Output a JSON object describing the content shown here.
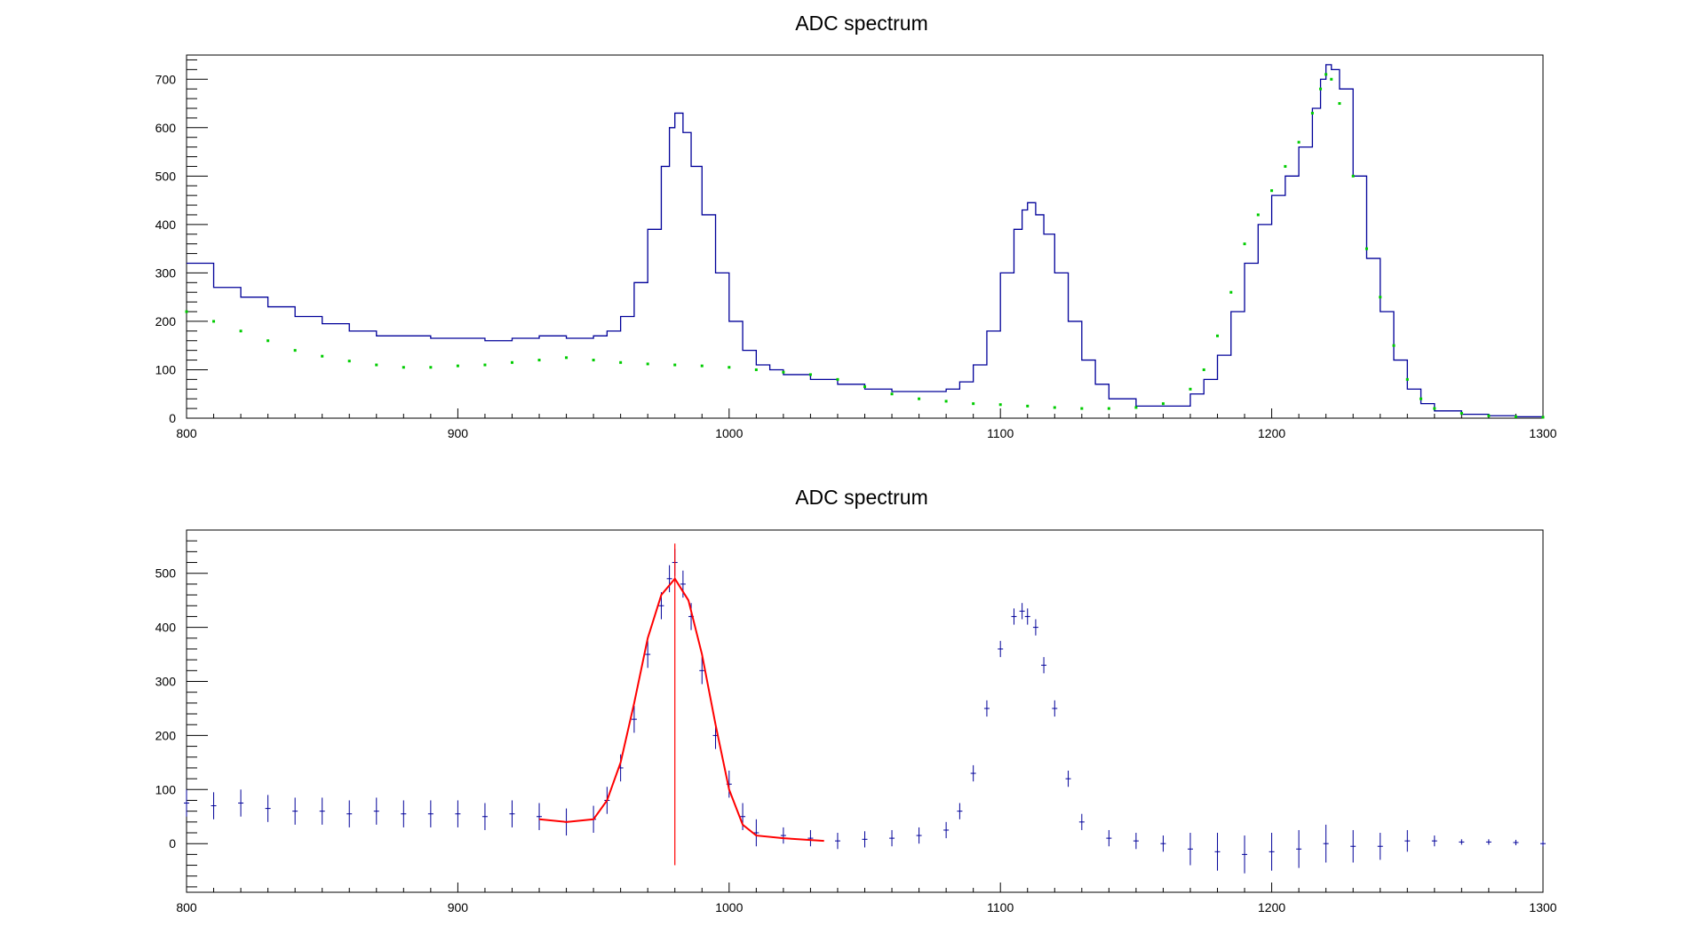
{
  "chart_data": [
    {
      "type": "line",
      "title": "ADC spectrum",
      "xlabel": "",
      "ylabel": "",
      "xlim": [
        800,
        1300
      ],
      "ylim": [
        0,
        750
      ],
      "grid": false,
      "x_ticks": [
        "800",
        "900",
        "1000",
        "1100",
        "1200",
        "1300"
      ],
      "y_ticks": [
        "0",
        "100",
        "200",
        "300",
        "400",
        "500",
        "600",
        "700"
      ],
      "colors": {
        "histogram": "#000099",
        "background": "#00cc00",
        "axes": "#000000"
      },
      "series": [
        {
          "style": "step-histogram",
          "x": [
            800,
            810,
            820,
            830,
            840,
            850,
            860,
            870,
            880,
            890,
            900,
            910,
            920,
            930,
            940,
            950,
            955,
            960,
            965,
            970,
            975,
            978,
            980,
            983,
            986,
            990,
            995,
            1000,
            1005,
            1010,
            1015,
            1020,
            1030,
            1040,
            1050,
            1060,
            1070,
            1080,
            1085,
            1090,
            1095,
            1100,
            1105,
            1108,
            1110,
            1113,
            1116,
            1120,
            1125,
            1130,
            1135,
            1140,
            1150,
            1160,
            1170,
            1175,
            1180,
            1185,
            1190,
            1195,
            1200,
            1205,
            1210,
            1215,
            1218,
            1220,
            1222,
            1225,
            1230,
            1235,
            1240,
            1245,
            1250,
            1255,
            1260,
            1270,
            1280,
            1290,
            1300
          ],
          "y": [
            320,
            270,
            250,
            230,
            210,
            195,
            180,
            170,
            170,
            165,
            165,
            160,
            165,
            170,
            165,
            170,
            180,
            210,
            280,
            390,
            520,
            600,
            630,
            590,
            520,
            420,
            300,
            200,
            140,
            110,
            100,
            90,
            80,
            70,
            60,
            55,
            55,
            60,
            75,
            110,
            180,
            300,
            390,
            430,
            445,
            420,
            380,
            300,
            200,
            120,
            70,
            40,
            25,
            25,
            50,
            80,
            130,
            220,
            320,
            400,
            460,
            500,
            560,
            640,
            700,
            730,
            720,
            680,
            500,
            330,
            220,
            120,
            60,
            30,
            15,
            8,
            5,
            3,
            3
          ]
        },
        {
          "style": "points",
          "x": [
            800,
            810,
            820,
            830,
            840,
            850,
            860,
            870,
            880,
            890,
            900,
            910,
            920,
            930,
            940,
            950,
            960,
            970,
            980,
            990,
            1000,
            1010,
            1020,
            1030,
            1040,
            1050,
            1060,
            1070,
            1080,
            1090,
            1100,
            1110,
            1120,
            1130,
            1140,
            1150,
            1160,
            1170,
            1175,
            1180,
            1185,
            1190,
            1195,
            1200,
            1205,
            1210,
            1215,
            1218,
            1220,
            1222,
            1225,
            1230,
            1235,
            1240,
            1245,
            1250,
            1255,
            1260,
            1270,
            1280,
            1290,
            1300
          ],
          "y": [
            220,
            200,
            180,
            160,
            140,
            128,
            118,
            110,
            105,
            105,
            108,
            110,
            115,
            120,
            125,
            120,
            115,
            112,
            110,
            108,
            105,
            100,
            95,
            90,
            80,
            65,
            50,
            40,
            35,
            30,
            28,
            25,
            22,
            20,
            20,
            22,
            30,
            60,
            100,
            170,
            260,
            360,
            420,
            470,
            520,
            570,
            630,
            680,
            710,
            700,
            650,
            500,
            350,
            250,
            150,
            80,
            40,
            20,
            10,
            5,
            3,
            2
          ]
        }
      ]
    },
    {
      "type": "scatter",
      "title": "ADC spectrum",
      "xlabel": "",
      "ylabel": "",
      "xlim": [
        800,
        1300
      ],
      "ylim": [
        -90,
        580
      ],
      "grid": false,
      "x_ticks": [
        "800",
        "900",
        "1000",
        "1100",
        "1200",
        "1300"
      ],
      "y_ticks": [
        "0",
        "100",
        "200",
        "300",
        "400",
        "500"
      ],
      "colors": {
        "points": "#000099",
        "fit": "#ff0000",
        "marker": "#ff0000",
        "axes": "#000000"
      },
      "series": [
        {
          "style": "points-with-errors",
          "x": [
            800,
            810,
            820,
            830,
            840,
            850,
            860,
            870,
            880,
            890,
            900,
            910,
            920,
            930,
            940,
            950,
            955,
            960,
            965,
            970,
            975,
            978,
            980,
            983,
            986,
            990,
            995,
            1000,
            1005,
            1010,
            1020,
            1030,
            1040,
            1050,
            1060,
            1070,
            1080,
            1085,
            1090,
            1095,
            1100,
            1105,
            1108,
            1110,
            1113,
            1116,
            1120,
            1125,
            1130,
            1140,
            1150,
            1160,
            1170,
            1180,
            1190,
            1200,
            1210,
            1220,
            1230,
            1240,
            1250,
            1260,
            1270,
            1280,
            1290,
            1300
          ],
          "y": [
            75,
            70,
            75,
            65,
            60,
            60,
            55,
            60,
            55,
            55,
            55,
            50,
            55,
            50,
            40,
            45,
            80,
            140,
            230,
            350,
            440,
            490,
            520,
            480,
            420,
            320,
            200,
            110,
            50,
            20,
            15,
            10,
            5,
            8,
            10,
            15,
            25,
            60,
            130,
            250,
            360,
            420,
            430,
            420,
            400,
            330,
            250,
            120,
            40,
            10,
            5,
            0,
            -10,
            -15,
            -20,
            -15,
            -10,
            0,
            -5,
            -5,
            5,
            5,
            3,
            3,
            2,
            0
          ],
          "errors": [
            25,
            25,
            25,
            25,
            25,
            25,
            25,
            25,
            25,
            25,
            25,
            25,
            25,
            25,
            25,
            25,
            25,
            25,
            25,
            25,
            25,
            25,
            25,
            25,
            25,
            25,
            25,
            25,
            25,
            25,
            15,
            15,
            15,
            15,
            15,
            15,
            15,
            15,
            15,
            15,
            15,
            15,
            15,
            15,
            15,
            15,
            15,
            15,
            15,
            15,
            15,
            15,
            30,
            35,
            35,
            35,
            35,
            35,
            30,
            25,
            20,
            10,
            5,
            5,
            5,
            5
          ]
        },
        {
          "style": "fit-line",
          "x": [
            930,
            940,
            950,
            955,
            960,
            965,
            970,
            975,
            980,
            985,
            990,
            995,
            1000,
            1005,
            1010,
            1020,
            1035
          ],
          "y": [
            45,
            40,
            45,
            80,
            150,
            260,
            380,
            460,
            490,
            450,
            350,
            220,
            100,
            35,
            15,
            10,
            5
          ]
        },
        {
          "style": "vertical-marker",
          "x": [
            980,
            980
          ],
          "y": [
            -40,
            555
          ]
        }
      ]
    }
  ]
}
